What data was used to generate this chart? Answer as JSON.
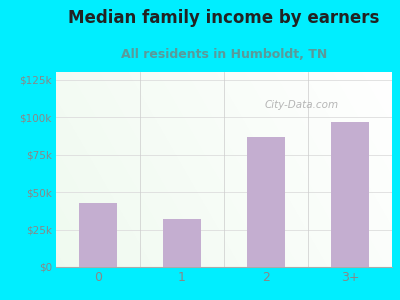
{
  "categories": [
    "0",
    "1",
    "2",
    "3+"
  ],
  "values": [
    43000,
    32000,
    87000,
    97000
  ],
  "bar_color": "#c4aed0",
  "title": "Median family income by earners",
  "subtitle": "All residents in Humboldt, TN",
  "ylim": [
    0,
    130000
  ],
  "yticks": [
    0,
    25000,
    50000,
    75000,
    100000,
    125000
  ],
  "ytick_labels": [
    "$0",
    "$25k",
    "$50k",
    "$75k",
    "$100k",
    "$125k"
  ],
  "background_color": "#00eeff",
  "plot_bg_color_topleft": "#dff0d8",
  "plot_bg_color_topright": "#f8fff8",
  "plot_bg_color_bottom": "#ffffff",
  "title_fontsize": 12,
  "title_color": "#222222",
  "subtitle_fontsize": 9,
  "subtitle_color": "#5a9a9a",
  "watermark_text": "City-Data.com",
  "watermark_color": "#aaaaaa",
  "tick_label_color": "#888888",
  "grid_color": "#dddddd",
  "separator_color": "#cccccc"
}
